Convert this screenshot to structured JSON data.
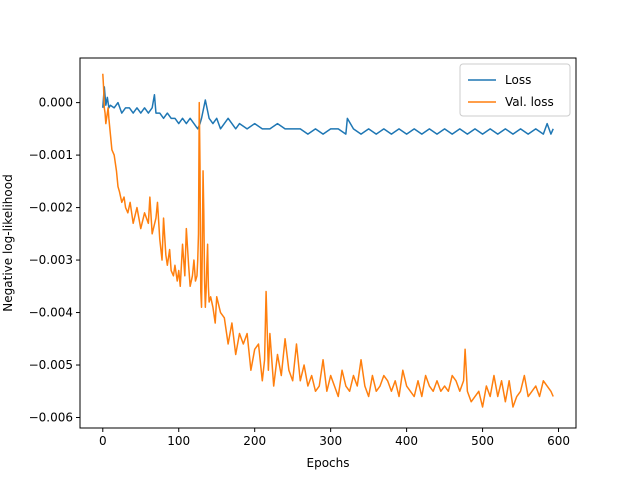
{
  "chart_data": {
    "type": "line",
    "title": "",
    "xlabel": "Epochs",
    "ylabel": "Negative log-likelihood",
    "xlim": [
      -30,
      623
    ],
    "ylim": [
      -0.0062,
      0.00085
    ],
    "xticks": [
      0,
      100,
      200,
      300,
      400,
      500,
      600
    ],
    "xtick_labels": [
      "0",
      "100",
      "200",
      "300",
      "400",
      "500",
      "600"
    ],
    "yticks": [
      0.0,
      -0.001,
      -0.002,
      -0.003,
      -0.004,
      -0.005,
      -0.006
    ],
    "ytick_labels": [
      "0.000",
      "−0.001",
      "−0.002",
      "−0.003",
      "−0.004",
      "−0.005",
      "−0.006"
    ],
    "grid": false,
    "legend_position": "upper right",
    "series": [
      {
        "name": "Loss",
        "color": "#1f77b4",
        "x": [
          0,
          2,
          4,
          6,
          8,
          10,
          15,
          20,
          25,
          30,
          35,
          40,
          45,
          50,
          55,
          60,
          65,
          68,
          70,
          75,
          80,
          85,
          90,
          95,
          100,
          105,
          110,
          115,
          120,
          125,
          128,
          130,
          135,
          140,
          145,
          150,
          155,
          160,
          165,
          170,
          175,
          180,
          190,
          200,
          210,
          220,
          230,
          240,
          250,
          260,
          270,
          280,
          290,
          300,
          310,
          320,
          322,
          330,
          340,
          350,
          360,
          370,
          380,
          390,
          400,
          410,
          420,
          430,
          440,
          450,
          460,
          470,
          480,
          490,
          500,
          510,
          520,
          530,
          540,
          550,
          560,
          570,
          580,
          585,
          590,
          593
        ],
        "y": [
          -0.0001,
          0.0003,
          -5e-05,
          0.0001,
          -0.0001,
          -5e-05,
          -0.0001,
          0.0,
          -0.0002,
          -0.0001,
          -0.0001,
          -0.0002,
          -0.0001,
          -0.0002,
          -0.0001,
          -0.0002,
          -0.0001,
          0.00015,
          -0.0002,
          -0.0002,
          -0.0003,
          -0.0002,
          -0.0003,
          -0.0003,
          -0.0004,
          -0.0003,
          -0.0004,
          -0.0003,
          -0.0004,
          -0.0005,
          -0.0004,
          -0.0003,
          5e-05,
          -0.0003,
          -0.0004,
          -0.0003,
          -0.0005,
          -0.0004,
          -0.0003,
          -0.0004,
          -0.0005,
          -0.0004,
          -0.0005,
          -0.0004,
          -0.0005,
          -0.0005,
          -0.0004,
          -0.0005,
          -0.0005,
          -0.0005,
          -0.0006,
          -0.0005,
          -0.0006,
          -0.0005,
          -0.0005,
          -0.0006,
          -0.0003,
          -0.0005,
          -0.0006,
          -0.0005,
          -0.0006,
          -0.0005,
          -0.0006,
          -0.0005,
          -0.0006,
          -0.0005,
          -0.0006,
          -0.0005,
          -0.0006,
          -0.0005,
          -0.0006,
          -0.0005,
          -0.0006,
          -0.0005,
          -0.0006,
          -0.0005,
          -0.0006,
          -0.0005,
          -0.0006,
          -0.0005,
          -0.0006,
          -0.0005,
          -0.0006,
          -0.0004,
          -0.0006,
          -0.0005
        ]
      },
      {
        "name": "Val. loss",
        "color": "#ff7f0e",
        "x": [
          0,
          1,
          2,
          3,
          4,
          5,
          6,
          7,
          8,
          10,
          12,
          15,
          18,
          20,
          22,
          25,
          28,
          30,
          33,
          36,
          40,
          45,
          50,
          55,
          60,
          62,
          65,
          70,
          72,
          75,
          78,
          80,
          83,
          85,
          88,
          90,
          93,
          95,
          98,
          100,
          102,
          105,
          108,
          110,
          113,
          115,
          118,
          120,
          122,
          124,
          125,
          126,
          127,
          128,
          129,
          130,
          131,
          132,
          133,
          134,
          135,
          136,
          137,
          138,
          139,
          140,
          142,
          145,
          148,
          150,
          155,
          160,
          165,
          170,
          175,
          180,
          185,
          190,
          195,
          200,
          205,
          210,
          213,
          215,
          218,
          220,
          225,
          230,
          235,
          240,
          245,
          250,
          255,
          260,
          265,
          270,
          275,
          280,
          285,
          290,
          295,
          300,
          305,
          310,
          315,
          320,
          325,
          330,
          335,
          340,
          345,
          350,
          355,
          360,
          365,
          370,
          375,
          380,
          385,
          390,
          395,
          400,
          405,
          410,
          415,
          420,
          425,
          430,
          435,
          440,
          445,
          450,
          455,
          460,
          465,
          470,
          475,
          477,
          480,
          485,
          490,
          495,
          500,
          505,
          510,
          515,
          520,
          525,
          530,
          535,
          540,
          545,
          550,
          555,
          560,
          565,
          570,
          575,
          580,
          585,
          590,
          593
        ],
        "y": [
          0.00055,
          0.0003,
          -0.0001,
          -0.0002,
          -0.0004,
          -0.0003,
          -0.0002,
          -0.0001,
          -0.0003,
          -0.0006,
          -0.0009,
          -0.001,
          -0.0013,
          -0.0016,
          -0.0017,
          -0.0019,
          -0.0018,
          -0.002,
          -0.0021,
          -0.0019,
          -0.0023,
          -0.002,
          -0.0024,
          -0.0021,
          -0.0023,
          -0.0018,
          -0.0025,
          -0.0022,
          -0.0019,
          -0.0026,
          -0.003,
          -0.0022,
          -0.0029,
          -0.0031,
          -0.0028,
          -0.0032,
          -0.0033,
          -0.0031,
          -0.0034,
          -0.0032,
          -0.0035,
          -0.0027,
          -0.0033,
          -0.0024,
          -0.0031,
          -0.0035,
          -0.0033,
          -0.003,
          -0.0034,
          -0.0033,
          -0.003,
          -0.0025,
          0.0,
          -0.0012,
          -0.0036,
          -0.0039,
          -0.0028,
          -0.0013,
          -0.0021,
          -0.0034,
          -0.0039,
          -0.0036,
          -0.0031,
          -0.0027,
          -0.0035,
          -0.0038,
          -0.0037,
          -0.0039,
          -0.0042,
          -0.0037,
          -0.004,
          -0.0041,
          -0.0046,
          -0.0042,
          -0.0048,
          -0.0044,
          -0.0046,
          -0.0044,
          -0.0051,
          -0.0047,
          -0.0046,
          -0.0053,
          -0.0049,
          -0.0036,
          -0.0051,
          -0.0044,
          -0.0054,
          -0.0048,
          -0.0052,
          -0.0045,
          -0.0051,
          -0.0053,
          -0.0046,
          -0.0053,
          -0.005,
          -0.0054,
          -0.0052,
          -0.0055,
          -0.0054,
          -0.0049,
          -0.0055,
          -0.0052,
          -0.0054,
          -0.0056,
          -0.0051,
          -0.0054,
          -0.0055,
          -0.0052,
          -0.0054,
          -0.0049,
          -0.0054,
          -0.0056,
          -0.0052,
          -0.0055,
          -0.0054,
          -0.0052,
          -0.0053,
          -0.0055,
          -0.0053,
          -0.0056,
          -0.0051,
          -0.0054,
          -0.0055,
          -0.0056,
          -0.0053,
          -0.0056,
          -0.0052,
          -0.0054,
          -0.0055,
          -0.0053,
          -0.0055,
          -0.0054,
          -0.0055,
          -0.0052,
          -0.0053,
          -0.0055,
          -0.0053,
          -0.0047,
          -0.0055,
          -0.0057,
          -0.0056,
          -0.0055,
          -0.0058,
          -0.0054,
          -0.0056,
          -0.0052,
          -0.0056,
          -0.0053,
          -0.0057,
          -0.0053,
          -0.0058,
          -0.0056,
          -0.0055,
          -0.0052,
          -0.0056,
          -0.0055,
          -0.0054,
          -0.0056,
          -0.0053,
          -0.0054,
          -0.0055,
          -0.0056
        ]
      }
    ]
  }
}
